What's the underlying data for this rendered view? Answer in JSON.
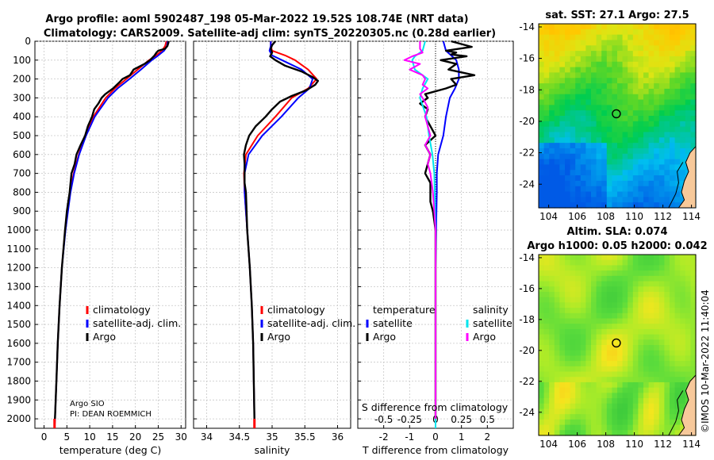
{
  "title_line1": "Argo profile: aoml 5902487_198 05-Mar-2022 19.52S 108.74E (NRT data)",
  "title_line2": "Climatology: CARS2009. Satellite-adj clim: synTS_20220305.nc (0.28d earlier)",
  "colors": {
    "climatology": "#ff0000",
    "satellite": "#0000ff",
    "argo": "#000000",
    "sal_sat": "#00e5ee",
    "sal_argo": "#ff00ff"
  },
  "chart_data": [
    {
      "type": "line",
      "id": "temperature",
      "xlabel": "temperature (deg C)",
      "xlim": [
        -2,
        31
      ],
      "xticks": [
        0,
        5,
        10,
        15,
        20,
        25,
        30
      ],
      "ylim": [
        0,
        2050
      ],
      "yticks": [
        0,
        100,
        200,
        300,
        400,
        500,
        600,
        700,
        800,
        900,
        1000,
        1100,
        1200,
        1300,
        1400,
        1500,
        1600,
        1700,
        1800,
        1900,
        2000
      ],
      "y_reversed": true,
      "legend": [
        "climatology",
        "satellite-adj. clim.",
        "Argo"
      ],
      "series": [
        {
          "name": "climatology",
          "depth": [
            0,
            25,
            50,
            75,
            100,
            150,
            200,
            250,
            300,
            400,
            500,
            600,
            700,
            800,
            1000,
            1200,
            1400,
            1600,
            1800,
            2000,
            2050
          ],
          "values": [
            26.8,
            26.5,
            25.8,
            24.5,
            23.0,
            20.5,
            18.0,
            15.5,
            13.5,
            10.8,
            9.0,
            7.6,
            6.5,
            5.7,
            4.6,
            3.9,
            3.4,
            3.0,
            2.7,
            2.4,
            2.3
          ]
        },
        {
          "name": "satellite-adj. clim.",
          "depth": [
            0,
            25,
            50,
            75,
            100,
            150,
            200,
            250,
            300,
            400,
            500,
            600,
            700,
            800,
            1000,
            1200,
            1400,
            1600,
            1800,
            2000,
            2050
          ],
          "values": [
            27.1,
            26.9,
            26.3,
            25.0,
            23.6,
            21.2,
            18.7,
            16.1,
            14.0,
            11.1,
            9.2,
            7.7,
            6.6,
            5.8,
            4.7,
            3.9,
            3.4,
            3.0,
            2.7,
            2.4,
            2.3
          ]
        },
        {
          "name": "Argo",
          "depth": [
            0,
            10,
            25,
            40,
            50,
            60,
            75,
            100,
            120,
            150,
            180,
            200,
            220,
            250,
            280,
            300,
            330,
            360,
            400,
            450,
            500,
            550,
            600,
            650,
            700,
            800,
            900,
            1000,
            1200,
            1400,
            1600,
            1800,
            2000
          ],
          "values": [
            27.3,
            27.2,
            27.0,
            26.5,
            25.0,
            24.6,
            24.2,
            23.2,
            22.0,
            19.6,
            18.8,
            17.2,
            16.4,
            15.1,
            13.4,
            12.6,
            11.9,
            11.0,
            10.5,
            9.6,
            9.0,
            8.0,
            7.1,
            6.7,
            6.0,
            5.6,
            5.0,
            4.6,
            3.9,
            3.4,
            3.0,
            2.7,
            2.4
          ]
        }
      ]
    },
    {
      "type": "line",
      "id": "salinity",
      "xlabel": "salinity",
      "xlim": [
        33.8,
        36.2
      ],
      "xticks": [
        34,
        34.5,
        35,
        35.5,
        36
      ],
      "ylim": [
        0,
        2050
      ],
      "y_reversed": true,
      "legend": [
        "climatology",
        "satellite-adj. clim.",
        "Argo"
      ],
      "series": [
        {
          "name": "climatology",
          "depth": [
            0,
            25,
            50,
            75,
            100,
            150,
            200,
            250,
            300,
            400,
            500,
            600,
            700,
            800,
            1000,
            1200,
            1400,
            1600,
            1800,
            2000,
            2050
          ],
          "values": [
            34.98,
            34.98,
            35.0,
            35.2,
            35.35,
            35.55,
            35.68,
            35.55,
            35.3,
            35.05,
            34.78,
            34.6,
            34.57,
            34.58,
            34.62,
            34.66,
            34.69,
            34.71,
            34.72,
            34.73,
            34.73
          ]
        },
        {
          "name": "satellite-adj. clim.",
          "depth": [
            0,
            25,
            50,
            75,
            100,
            150,
            200,
            250,
            300,
            400,
            500,
            600,
            700,
            800,
            1000,
            1200,
            1400,
            1600,
            1800,
            2000,
            2050
          ],
          "values": [
            34.98,
            34.98,
            34.96,
            35.0,
            35.15,
            35.45,
            35.62,
            35.57,
            35.4,
            35.14,
            34.85,
            34.64,
            34.58,
            34.58,
            34.62,
            34.66,
            34.69,
            34.71,
            34.72,
            34.73,
            34.73
          ]
        },
        {
          "name": "Argo",
          "depth": [
            0,
            20,
            40,
            60,
            80,
            100,
            130,
            160,
            190,
            210,
            230,
            260,
            290,
            320,
            360,
            400,
            450,
            500,
            550,
            600,
            650,
            700,
            750,
            800,
            900,
            1000,
            1200,
            1400,
            1600,
            1800,
            2000
          ],
          "values": [
            35.05,
            35.0,
            34.98,
            35.0,
            34.97,
            35.05,
            35.2,
            35.45,
            35.62,
            35.7,
            35.66,
            35.52,
            35.3,
            35.12,
            35.0,
            34.9,
            34.75,
            34.65,
            34.6,
            34.57,
            34.58,
            34.58,
            34.58,
            34.6,
            34.61,
            34.62,
            34.66,
            34.69,
            34.71,
            34.72,
            34.73
          ]
        }
      ]
    },
    {
      "type": "line",
      "id": "difference",
      "xlabel": "T difference from climatology",
      "xlabel2": "S difference from climatology",
      "xlim": [
        -3,
        3
      ],
      "xticks": [
        -2,
        -1,
        0,
        1,
        2
      ],
      "s_xticks": [
        "-0.5",
        "-0.25",
        "0",
        "0.25",
        "0.5"
      ],
      "s_tick_positions": [
        -2,
        -1,
        0,
        1,
        2
      ],
      "ylim": [
        0,
        2050
      ],
      "y_reversed": true,
      "legend_left_title": "temperature",
      "legend_right_title": "salinity",
      "legend_left": [
        "satellite",
        "Argo"
      ],
      "legend_right": [
        "satellite",
        "Argo"
      ],
      "series": [
        {
          "name": "T satellite",
          "color": "satellite",
          "depth": [
            0,
            50,
            100,
            150,
            200,
            250,
            300,
            400,
            500,
            600,
            700,
            800,
            1000,
            1200,
            1400,
            1600,
            1800,
            2000,
            2050
          ],
          "values": [
            0.3,
            0.4,
            0.8,
            0.9,
            0.9,
            0.75,
            0.55,
            0.4,
            0.3,
            0.1,
            0.05,
            0.05,
            0.02,
            0,
            0,
            0,
            0,
            0,
            0
          ]
        },
        {
          "name": "T Argo",
          "color": "argo",
          "depth": [
            0,
            30,
            50,
            60,
            70,
            80,
            100,
            120,
            150,
            180,
            200,
            230,
            250,
            280,
            300,
            330,
            360,
            400,
            450,
            500,
            550,
            600,
            650,
            700,
            750,
            800,
            850,
            900,
            1000,
            1200,
            1400,
            1600,
            1800,
            2000
          ],
          "values": [
            0.6,
            1.4,
            0.4,
            0.8,
            0.6,
            1.2,
            0.2,
            0.8,
            0.5,
            1.5,
            0.6,
            0.8,
            0.4,
            -0.4,
            -0.3,
            -0.6,
            -0.3,
            -0.4,
            -0.2,
            0.0,
            -0.4,
            -0.2,
            -0.3,
            -0.4,
            -0.2,
            -0.2,
            -0.2,
            -0.1,
            0,
            0,
            0,
            0,
            0,
            0
          ]
        },
        {
          "name": "S satellite",
          "color": "sal_sat",
          "depth": [
            0,
            50,
            80,
            100,
            150,
            200,
            250,
            300,
            400,
            500,
            600,
            700,
            800,
            1000,
            1200,
            1400,
            1600,
            1800,
            2000,
            2050
          ],
          "values": [
            -0.4,
            -0.5,
            -0.8,
            -0.9,
            -0.8,
            -0.3,
            -0.5,
            -0.6,
            -0.35,
            -0.25,
            -0.12,
            -0.05,
            -0.03,
            0,
            0,
            0,
            0,
            0,
            0,
            0
          ]
        },
        {
          "name": "S Argo",
          "color": "sal_argo",
          "depth": [
            0,
            40,
            60,
            80,
            100,
            120,
            150,
            180,
            200,
            230,
            250,
            280,
            300,
            350,
            400,
            450,
            500,
            550,
            600,
            650,
            700,
            800,
            900,
            1000,
            1200,
            1400,
            1600,
            1800,
            2000
          ],
          "values": [
            -0.6,
            -0.6,
            -0.5,
            -0.9,
            -1.2,
            -0.6,
            -1.0,
            -0.5,
            -0.4,
            -0.5,
            -0.3,
            -0.6,
            -0.5,
            -0.3,
            -0.4,
            -0.3,
            -0.2,
            -0.4,
            -0.2,
            -0.3,
            -0.2,
            -0.1,
            -0.05,
            0,
            0,
            0,
            0,
            0,
            0
          ]
        }
      ]
    },
    {
      "type": "heatmap",
      "id": "sst_map",
      "title": "sat. SST: 27.1 Argo: 27.5",
      "xlim": [
        103.3,
        114.3
      ],
      "ylim": [
        -25.5,
        -13.8
      ],
      "xticks": [
        104,
        106,
        108,
        110,
        112,
        114
      ],
      "yticks": [
        -14,
        -16,
        -18,
        -20,
        -22,
        -24
      ],
      "marker": {
        "lon": 108.74,
        "lat": -19.52
      }
    },
    {
      "type": "heatmap",
      "id": "sla_map",
      "title": "Altim. SLA: 0.074",
      "subtitle": "Argo h1000: 0.05 h2000: 0.042",
      "xlim": [
        103.3,
        114.3
      ],
      "ylim": [
        -25.5,
        -13.8
      ],
      "xticks": [
        104,
        106,
        108,
        110,
        112,
        114
      ],
      "yticks": [
        -14,
        -16,
        -18,
        -20,
        -22,
        -24
      ],
      "marker": {
        "lon": 108.74,
        "lat": -19.52
      }
    }
  ],
  "labels": {
    "argo_org": "Argo SIO",
    "argo_pi": "PI: DEAN ROEMMICH",
    "credit": "©IMOS 10-Mar-2022 11:40:04"
  }
}
